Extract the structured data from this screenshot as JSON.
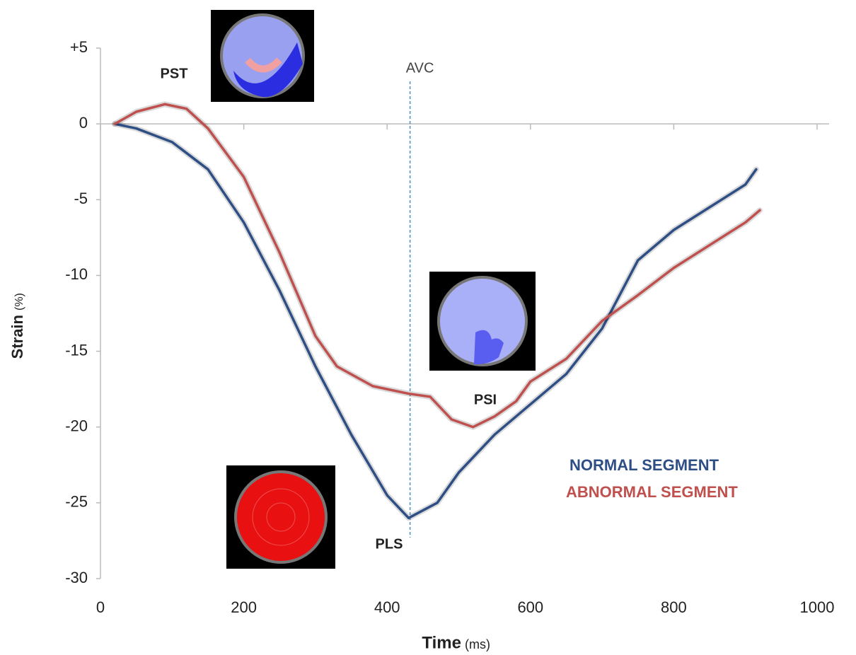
{
  "chart_data": {
    "type": "line",
    "xlabel": "Time",
    "xunit": "(ms)",
    "ylabel": "Strain",
    "yunit": "(%)",
    "xlim": [
      0,
      1000
    ],
    "xticks": [
      0,
      200,
      400,
      600,
      800,
      1000
    ],
    "ylim": [
      -30,
      5
    ],
    "yticks": [
      {
        "value": 5,
        "label": "+5"
      },
      0,
      -5,
      -10,
      -15,
      -20,
      -25,
      -30
    ],
    "avc": {
      "label": "AVC",
      "x": 432
    },
    "annotations": [
      "PST",
      "PSI",
      "PLS"
    ],
    "series": [
      {
        "name": "NORMAL SEGMENT",
        "color": "#2e4e86",
        "x": [
          20,
          50,
          100,
          150,
          200,
          250,
          300,
          350,
          400,
          430,
          470,
          500,
          550,
          600,
          650,
          700,
          750,
          800,
          850,
          900,
          915
        ],
        "values": [
          0,
          -0.3,
          -1.2,
          -3,
          -6.5,
          -11,
          -16,
          -20.5,
          -24.5,
          -26,
          -25,
          -23,
          -20.5,
          -18.5,
          -16.5,
          -13.5,
          -9,
          -7,
          -5.5,
          -4,
          -3
        ]
      },
      {
        "name": "ABNORMAL SEGMENT",
        "color": "#c0504d",
        "x": [
          20,
          50,
          90,
          120,
          150,
          200,
          250,
          300,
          330,
          380,
          430,
          460,
          490,
          520,
          550,
          580,
          600,
          650,
          700,
          750,
          800,
          850,
          900,
          920
        ],
        "values": [
          0,
          0.8,
          1.3,
          1,
          -0.3,
          -3.5,
          -8.5,
          -14,
          -16,
          -17.3,
          -17.8,
          -18,
          -19.5,
          -20,
          -19.3,
          -18.3,
          -17,
          -15.5,
          -13,
          -11.3,
          -9.5,
          -8,
          -6.5,
          -5.7
        ]
      }
    ]
  }
}
